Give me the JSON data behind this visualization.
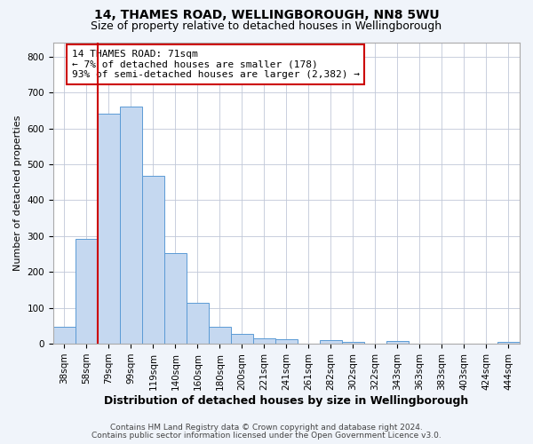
{
  "title": "14, THAMES ROAD, WELLINGBOROUGH, NN8 5WU",
  "subtitle": "Size of property relative to detached houses in Wellingborough",
  "xlabel": "Distribution of detached houses by size in Wellingborough",
  "ylabel": "Number of detached properties",
  "bar_labels": [
    "38sqm",
    "58sqm",
    "79sqm",
    "99sqm",
    "119sqm",
    "140sqm",
    "160sqm",
    "180sqm",
    "200sqm",
    "221sqm",
    "241sqm",
    "261sqm",
    "282sqm",
    "302sqm",
    "322sqm",
    "343sqm",
    "363sqm",
    "383sqm",
    "403sqm",
    "424sqm",
    "444sqm"
  ],
  "bar_values": [
    47,
    293,
    640,
    660,
    468,
    253,
    113,
    48,
    28,
    15,
    12,
    0,
    10,
    5,
    0,
    8,
    0,
    0,
    0,
    0,
    5
  ],
  "bar_color": "#c5d8f0",
  "bar_edge_color": "#5b9bd5",
  "vline_x": 1.5,
  "vline_color": "#cc0000",
  "ylim": [
    0,
    840
  ],
  "yticks": [
    0,
    100,
    200,
    300,
    400,
    500,
    600,
    700,
    800
  ],
  "annotation_title": "14 THAMES ROAD: 71sqm",
  "annotation_line1": "← 7% of detached houses are smaller (178)",
  "annotation_line2": "93% of semi-detached houses are larger (2,382) →",
  "annotation_box_color": "#cc0000",
  "footer_line1": "Contains HM Land Registry data © Crown copyright and database right 2024.",
  "footer_line2": "Contains public sector information licensed under the Open Government Licence v3.0.",
  "bg_color": "#f0f4fa",
  "plot_bg_color": "#ffffff",
  "title_fontsize": 10,
  "subtitle_fontsize": 9,
  "xlabel_fontsize": 9,
  "ylabel_fontsize": 8,
  "tick_fontsize": 7.5,
  "footer_fontsize": 6.5,
  "annot_fontsize": 8
}
